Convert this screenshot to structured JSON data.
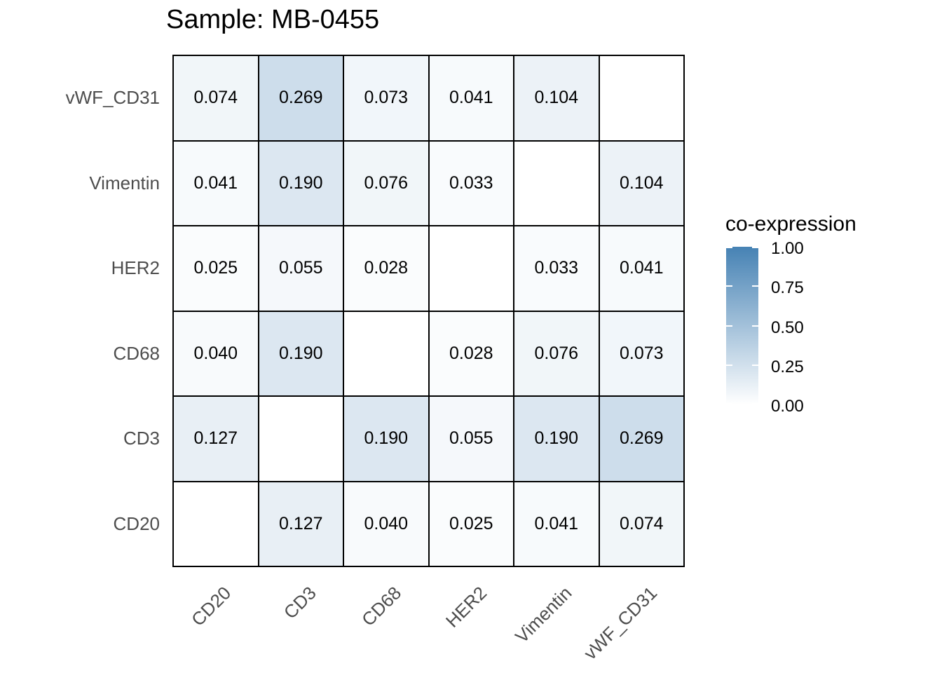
{
  "title": "Sample: MB-0455",
  "chart_data": {
    "type": "heatmap",
    "title": "Sample: MB-0455",
    "rows_top_to_bottom": [
      "vWF_CD31",
      "Vimentin",
      "HER2",
      "CD68",
      "CD3",
      "CD20"
    ],
    "columns_left_to_right": [
      "CD20",
      "CD3",
      "CD68",
      "HER2",
      "Vimentin",
      "vWF_CD31"
    ],
    "values": [
      [
        0.074,
        0.269,
        0.073,
        0.041,
        0.104,
        null
      ],
      [
        0.041,
        0.19,
        0.076,
        0.033,
        null,
        0.104
      ],
      [
        0.025,
        0.055,
        0.028,
        null,
        0.033,
        0.041
      ],
      [
        0.04,
        0.19,
        null,
        0.028,
        0.076,
        0.073
      ],
      [
        0.127,
        null,
        0.19,
        0.055,
        0.19,
        0.269
      ],
      [
        null,
        0.127,
        0.04,
        0.025,
        0.041,
        0.074
      ]
    ],
    "value_decimals": 3,
    "colorscale": {
      "low": "#FFFFFF",
      "high": "#4682B4",
      "domain": [
        0,
        1
      ]
    },
    "legend": {
      "title": "co-expression",
      "tick_labels": [
        "1.00",
        "0.75",
        "0.50",
        "0.25",
        "0.00"
      ],
      "tick_values": [
        1.0,
        0.75,
        0.5,
        0.25,
        0.0
      ],
      "position": "right"
    },
    "grid_line_color": "#000000",
    "axis_text_color": "#4D4D4D",
    "xlabel": "",
    "ylabel": ""
  }
}
